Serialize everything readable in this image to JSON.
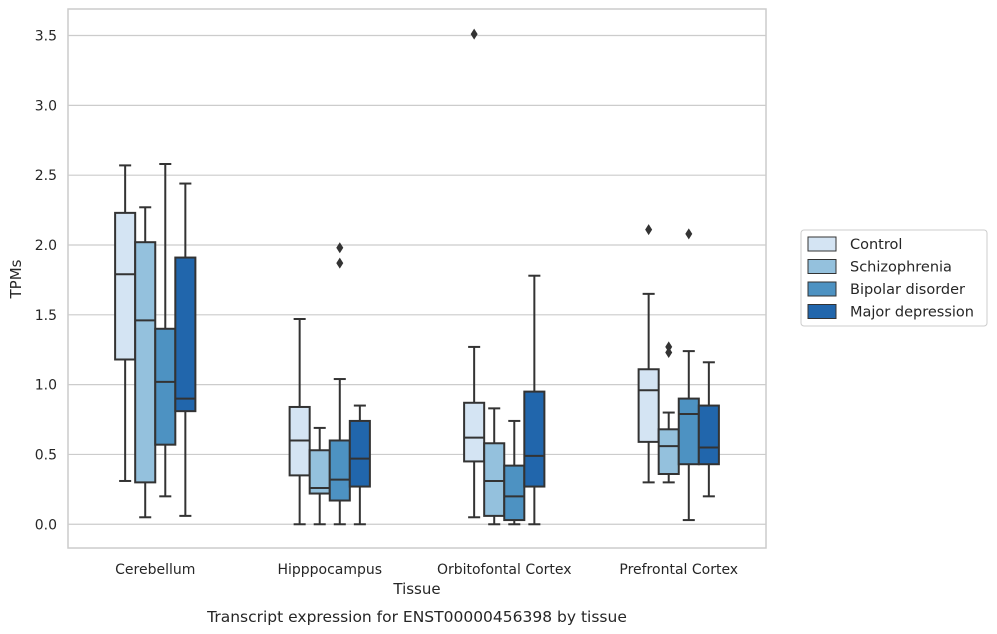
{
  "chart_data": {
    "type": "box",
    "title": "",
    "caption": "Transcript expression for ENST00000456398 by tissue",
    "xlabel": "Tissue",
    "ylabel": "TPMs",
    "ylim": [
      -0.17,
      3.69
    ],
    "yticks": [
      "0.0",
      "0.5",
      "1.0",
      "1.5",
      "2.0",
      "2.5",
      "3.0",
      "3.5"
    ],
    "grid": "horizontal",
    "legend_position": "right",
    "categories": [
      "Cerebellum",
      "Hipppocampus",
      "Orbitofontal Cortex",
      "Prefrontal Cortex"
    ],
    "series": [
      {
        "name": "Control",
        "color": "#d4e4f3",
        "boxes": [
          {
            "whisker_low": 0.31,
            "q1": 1.18,
            "median": 1.79,
            "q3": 2.23,
            "whisker_high": 2.57,
            "outliers": []
          },
          {
            "whisker_low": 0.0,
            "q1": 0.35,
            "median": 0.6,
            "q3": 0.84,
            "whisker_high": 1.47,
            "outliers": []
          },
          {
            "whisker_low": 0.05,
            "q1": 0.45,
            "median": 0.62,
            "q3": 0.87,
            "whisker_high": 1.27,
            "outliers": [
              3.51
            ]
          },
          {
            "whisker_low": 0.3,
            "q1": 0.59,
            "median": 0.96,
            "q3": 1.11,
            "whisker_high": 1.65,
            "outliers": [
              2.11
            ]
          }
        ]
      },
      {
        "name": "Schizophrenia",
        "color": "#94c1dd",
        "boxes": [
          {
            "whisker_low": 0.05,
            "q1": 0.3,
            "median": 1.46,
            "q3": 2.02,
            "whisker_high": 2.27,
            "outliers": []
          },
          {
            "whisker_low": 0.0,
            "q1": 0.22,
            "median": 0.26,
            "q3": 0.53,
            "whisker_high": 0.69,
            "outliers": []
          },
          {
            "whisker_low": 0.0,
            "q1": 0.06,
            "median": 0.31,
            "q3": 0.58,
            "whisker_high": 0.83,
            "outliers": []
          },
          {
            "whisker_low": 0.3,
            "q1": 0.36,
            "median": 0.56,
            "q3": 0.68,
            "whisker_high": 0.8,
            "outliers": [
              1.23,
              1.27
            ]
          }
        ]
      },
      {
        "name": "Bipolar disorder",
        "color": "#4d92c2",
        "boxes": [
          {
            "whisker_low": 0.2,
            "q1": 0.57,
            "median": 1.02,
            "q3": 1.4,
            "whisker_high": 2.58,
            "outliers": []
          },
          {
            "whisker_low": 0.0,
            "q1": 0.17,
            "median": 0.32,
            "q3": 0.6,
            "whisker_high": 1.04,
            "outliers": [
              1.87,
              1.98
            ]
          },
          {
            "whisker_low": 0.0,
            "q1": 0.03,
            "median": 0.2,
            "q3": 0.42,
            "whisker_high": 0.74,
            "outliers": []
          },
          {
            "whisker_low": 0.03,
            "q1": 0.43,
            "median": 0.79,
            "q3": 0.9,
            "whisker_high": 1.24,
            "outliers": [
              2.08
            ]
          }
        ]
      },
      {
        "name": "Major depression",
        "color": "#2166ac",
        "boxes": [
          {
            "whisker_low": 0.06,
            "q1": 0.81,
            "median": 0.9,
            "q3": 1.91,
            "whisker_high": 2.44,
            "outliers": []
          },
          {
            "whisker_low": 0.0,
            "q1": 0.27,
            "median": 0.47,
            "q3": 0.74,
            "whisker_high": 0.85,
            "outliers": []
          },
          {
            "whisker_low": 0.0,
            "q1": 0.27,
            "median": 0.49,
            "q3": 0.95,
            "whisker_high": 1.78,
            "outliers": []
          },
          {
            "whisker_low": 0.2,
            "q1": 0.43,
            "median": 0.55,
            "q3": 0.85,
            "whisker_high": 1.16,
            "outliers": []
          }
        ]
      }
    ]
  }
}
